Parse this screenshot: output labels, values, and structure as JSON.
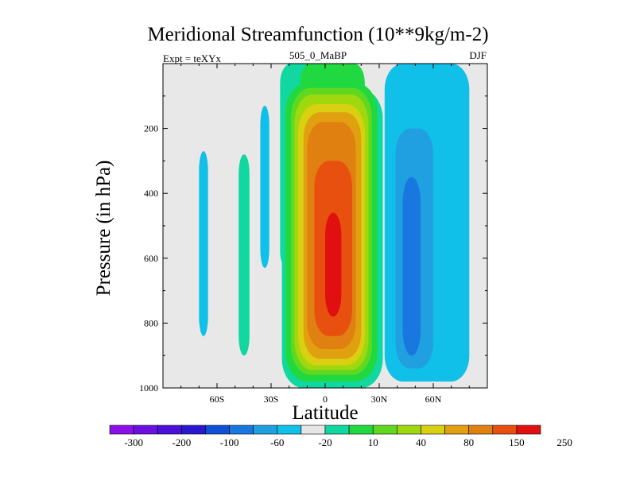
{
  "chart_data": {
    "type": "contour",
    "title": "Meridional Streamfunction (10**9kg/m-2)",
    "subtitle": "505_0_MaBP",
    "left_label": "Expt = teXYx",
    "right_label": "DJF",
    "xlabel": "Latitude",
    "ylabel": "Pressure (in hPa)",
    "x_ticks": [
      -60,
      -30,
      0,
      30,
      60
    ],
    "x_tick_labels": [
      "60S",
      "30S",
      "0",
      "30N",
      "60N"
    ],
    "xlim": [
      -90,
      90
    ],
    "y_ticks": [
      200,
      400,
      600,
      800,
      1000
    ],
    "y_tick_labels": [
      "200",
      "400",
      "600",
      "800",
      "1000"
    ],
    "ylim": [
      0,
      1000
    ],
    "y_inverted": true,
    "background_color": "#e8e8e8",
    "colorbar": {
      "colors": [
        "#8b10e8",
        "#6a10e0",
        "#4a10d8",
        "#2a18d0",
        "#1050d8",
        "#1878e0",
        "#20a0e0",
        "#10c0e8",
        "#e6e6e6",
        "#10d8a0",
        "#20d840",
        "#60d820",
        "#a0d810",
        "#d8d010",
        "#e0a010",
        "#e08010",
        "#e85010",
        "#e01010"
      ],
      "labels": [
        "-300",
        "-200",
        "-100",
        "-60",
        "-20",
        "10",
        "40",
        "80",
        "150",
        "250"
      ]
    },
    "features": [
      {
        "name": "Tropical positive (Hadley) cell",
        "level_boundaries": [
          10,
          40,
          60,
          80,
          100,
          150,
          200,
          250,
          300
        ],
        "center_lat": 5,
        "center_pressure": 650,
        "max_value_range": [
          250,
          300
        ]
      },
      {
        "name": "NH negative cell",
        "level_boundaries": [
          -10,
          -20,
          -40
        ],
        "center_lat": 47,
        "center_pressure": 600,
        "min_value_range": [
          -40,
          -60
        ]
      },
      {
        "name": "Tropical upper-level weak positive",
        "level_boundaries": [
          10,
          20
        ],
        "lat_range": [
          -25,
          20
        ],
        "pressure_range": [
          0,
          250
        ]
      },
      {
        "name": "Band at 35S (weak negative)",
        "lat_range": [
          -36,
          -31
        ],
        "pressure_range": [
          130,
          630
        ]
      },
      {
        "name": "Band at 45S (weak positive)",
        "lat_range": [
          -48,
          -42
        ],
        "pressure_range": [
          280,
          900
        ]
      },
      {
        "name": "Band at 68S (weak negative)",
        "lat_range": [
          -70,
          -65
        ],
        "pressure_range": [
          270,
          840
        ]
      }
    ]
  }
}
